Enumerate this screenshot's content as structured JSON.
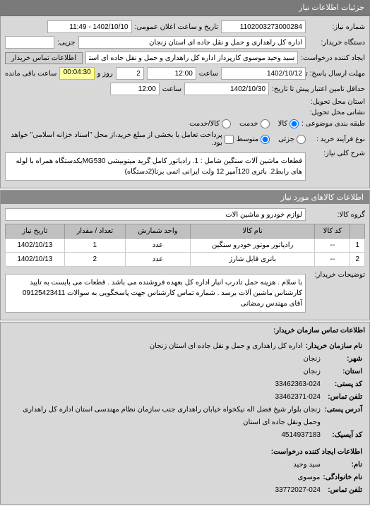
{
  "tabs": {
    "active": "جزئیات اطلاعات نیاز"
  },
  "header": {
    "request_number_label": "شماره نیاز:",
    "request_number": "1102003273000284",
    "announce_datetime_label": "تاریخ و ساعت اعلان عمومی:",
    "announce_datetime": "1402/10/10 - 11:49"
  },
  "buyer": {
    "org_label": "دستگاه خریدار:",
    "org": "اداره کل راهداری و حمل و نقل جاده ای استان زنجان",
    "sub_label": "جزیی:",
    "requester_label": "ایجاد کننده درخواست:",
    "requester": "سید وحید موسوی کارپرداز اداره کل راهداری و حمل و نقل جاده ای استان زنجان",
    "contact_btn": "اطلاعات تماس خریدار"
  },
  "deadlines": {
    "response_until_label": "مهلت ارسال پاسخ: تا تاریخ:",
    "response_date": "1402/10/12",
    "time_label": "ساعت",
    "response_time": "12:00",
    "day_and": "روز و",
    "days_remaining": "2",
    "countdown": "00:04:30",
    "remaining_label": "ساعت باقی مانده",
    "supplier_until_label": "حداقل تامین اعتبار پیش تا تاریخ:",
    "supplier_date": "1402/10/30",
    "supplier_time": "12:00"
  },
  "delivery": {
    "location_label": "استان محل تحویل:",
    "address_label": "نشانی محل تحویل:"
  },
  "budget": {
    "type_label": "طبقه بندی موضوعی :",
    "options": {
      "goods": "کالا",
      "services": "خدمت",
      "goods_services": "کالا/خدمت"
    },
    "process_label": "نوع فرآیند خرید :",
    "process_options": {
      "low": "جزئی",
      "medium": "متوسط"
    },
    "partial_payment": "پرداخت تعامل یا بخشی از مبلغ خرید،از محل \"اسناد خزانه اسلامی\" خواهد بود."
  },
  "description": {
    "title_label": "شرح کلی نیاز:",
    "text": "قطعات ماشین آلات سنگین شامل : 1. رادیاتور کامل گرید میتوبیشی MG530یکدستگاه همراه با لوله های رابط2. باتری 120آمپر 12 ولت ایرانی اتمی برنا(2دستگاه)"
  },
  "items_section": {
    "title": "اطلاعات کالاهای مورد نیاز",
    "group_label": "گروه کالا:",
    "group": "لوازم خودرو و ماشین آلات"
  },
  "table": {
    "columns": [
      "",
      "کد کالا",
      "نام کالا",
      "واحد شمارش",
      "تعداد / مقدار",
      "تاریخ نیاز"
    ],
    "rows": [
      [
        "1",
        "--",
        "رادیاتور موتور خودرو سنگین",
        "عدد",
        "1",
        "1402/10/13"
      ],
      [
        "2",
        "--",
        "باتری قابل شارژ",
        "عدد",
        "2",
        "1402/10/13"
      ]
    ]
  },
  "notes": {
    "label": "توضیحات خریدار:",
    "text": "با سلام . هزینه حمل تادرب انبار اداره کل بعهده فروشنده می باشد . قطعات می بایست به تایید کارشناس ماشین آلات برسد . شماره تماس کارشناس جهت پاسخگویی به سوالات 09125423411 آقای مهندس رمضانی"
  },
  "contact": {
    "title": "اطلاعات تماس سازمان خریدار:",
    "org_name_label": "نام سازمان خریدار:",
    "org_name": "اداره کل راهداری و حمل و نقل جاده ای استان زنجان",
    "city_label": "شهر:",
    "city": "زنجان",
    "province_label": "استان:",
    "province": "زنجان",
    "postal_label": "کد پستی:",
    "postal": "33462363-024",
    "phone_label": "تلفن تماس:",
    "phone": "33462371-024",
    "address_label": "آدرس پستی:",
    "address": "زنجان بلوار شیخ فضل اله نیکخواه خیابان راهداری جنب سازمان نظام مهندسی استان اداره کل راهداری وحمل ونقل جاده ای استان",
    "code_label": "کد آیسیک:",
    "code": "4514937183",
    "creator_title": "اطلاعات ایجاد کننده درخواست:",
    "name_label": "نام:",
    "name": "سید وحید",
    "family_label": "نام خانوادگی:",
    "family": "موسوی",
    "creator_phone_label": "تلفن تماس:",
    "creator_phone": "33772027-024"
  }
}
